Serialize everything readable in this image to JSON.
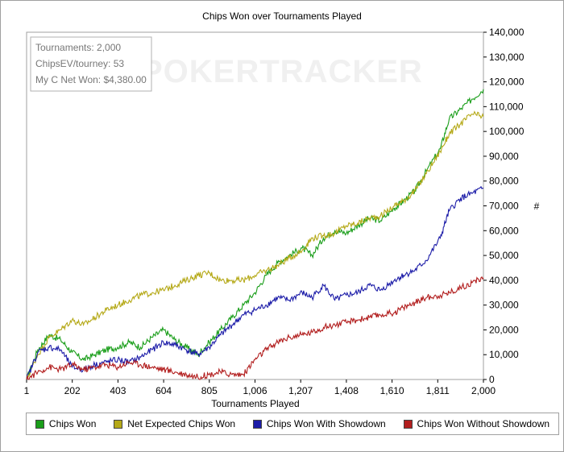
{
  "chart_data": {
    "type": "line",
    "title": "Chips Won over Tournaments Played",
    "xlabel": "Tournaments Played",
    "ylabel": "#",
    "x_ticks": [
      "1",
      "202",
      "403",
      "604",
      "805",
      "1,006",
      "1,207",
      "1,408",
      "1,610",
      "1,811",
      "2,000"
    ],
    "y_ticks": [
      "0",
      "10,000",
      "20,000",
      "30,000",
      "40,000",
      "50,000",
      "60,000",
      "70,000",
      "80,000",
      "90,000",
      "100,000",
      "110,000",
      "120,000",
      "130,000",
      "140,000"
    ],
    "xlim": [
      1,
      2000
    ],
    "ylim": [
      0,
      140000
    ],
    "grid": false,
    "legend_position": "bottom",
    "info_box": [
      "Tournaments: 2,000",
      "ChipsEV/tourney: 53",
      "My C Net Won: $4,380.00"
    ],
    "watermark": "POKERTRACKER",
    "series": [
      {
        "name": "Chips Won",
        "color": "#1a9e1a",
        "x": [
          1,
          50,
          100,
          150,
          200,
          250,
          300,
          350,
          400,
          450,
          500,
          550,
          600,
          650,
          700,
          750,
          800,
          850,
          900,
          950,
          1000,
          1050,
          1100,
          1150,
          1207,
          1250,
          1300,
          1350,
          1400,
          1450,
          1500,
          1550,
          1610,
          1650,
          1700,
          1750,
          1811,
          1850,
          1900,
          1950,
          2000
        ],
        "y": [
          0,
          12000,
          18000,
          16000,
          11000,
          8000,
          10000,
          12000,
          13000,
          15000,
          13000,
          17000,
          20000,
          16000,
          13000,
          10000,
          15000,
          20000,
          25000,
          30000,
          35000,
          42000,
          47000,
          50000,
          53000,
          50000,
          57000,
          60000,
          59000,
          62000,
          65000,
          64000,
          69000,
          72000,
          76000,
          84000,
          93000,
          105000,
          109000,
          113000,
          117000
        ]
      },
      {
        "name": "Net Expected Chips Won",
        "color": "#b5a918",
        "x": [
          1,
          50,
          100,
          150,
          200,
          250,
          300,
          350,
          400,
          450,
          500,
          550,
          600,
          650,
          700,
          750,
          800,
          850,
          900,
          950,
          1000,
          1050,
          1100,
          1150,
          1207,
          1250,
          1300,
          1350,
          1400,
          1450,
          1500,
          1550,
          1610,
          1650,
          1700,
          1750,
          1811,
          1850,
          1900,
          1950,
          2000
        ],
        "y": [
          0,
          10000,
          17000,
          20000,
          24000,
          22000,
          25000,
          28000,
          30000,
          32000,
          34000,
          35000,
          36000,
          38000,
          40000,
          42000,
          43000,
          40000,
          40000,
          40000,
          42000,
          44000,
          46000,
          49000,
          52000,
          57000,
          58000,
          59000,
          62000,
          63000,
          65000,
          66000,
          70000,
          72000,
          76000,
          83000,
          92000,
          99000,
          103000,
          107000,
          106000
        ]
      },
      {
        "name": "Chips Won With Showdown",
        "color": "#1c1ca8",
        "x": [
          1,
          50,
          100,
          150,
          200,
          250,
          300,
          350,
          400,
          450,
          500,
          550,
          600,
          650,
          700,
          750,
          800,
          850,
          900,
          950,
          1000,
          1050,
          1100,
          1150,
          1207,
          1250,
          1300,
          1350,
          1400,
          1450,
          1500,
          1550,
          1610,
          1650,
          1700,
          1750,
          1811,
          1850,
          1900,
          1950,
          2000
        ],
        "y": [
          0,
          11000,
          13000,
          12000,
          5000,
          4000,
          6000,
          7000,
          8000,
          7000,
          9000,
          12000,
          15000,
          14000,
          12000,
          10000,
          13000,
          18000,
          22000,
          26000,
          28000,
          30000,
          33000,
          32000,
          35000,
          33000,
          38000,
          32000,
          34000,
          35000,
          38000,
          36000,
          40000,
          42000,
          44000,
          48000,
          57000,
          68000,
          73000,
          75000,
          77000
        ]
      },
      {
        "name": "Chips Won Without Showdown",
        "color": "#b21e1e",
        "x": [
          1,
          50,
          100,
          150,
          200,
          250,
          300,
          350,
          400,
          450,
          500,
          550,
          600,
          650,
          700,
          750,
          800,
          850,
          900,
          950,
          1000,
          1050,
          1100,
          1150,
          1207,
          1250,
          1300,
          1350,
          1400,
          1450,
          1500,
          1550,
          1610,
          1650,
          1700,
          1750,
          1811,
          1850,
          1900,
          1950,
          2000
        ],
        "y": [
          0,
          3000,
          5000,
          4000,
          6000,
          4000,
          5000,
          6000,
          5000,
          7000,
          6000,
          5000,
          4000,
          3000,
          2000,
          1000,
          2000,
          3000,
          2000,
          2000,
          8000,
          12000,
          15000,
          17000,
          18000,
          19000,
          21000,
          22000,
          23000,
          24000,
          25000,
          26000,
          27000,
          29000,
          31000,
          33000,
          34000,
          35000,
          37000,
          39000,
          41000
        ]
      }
    ]
  }
}
